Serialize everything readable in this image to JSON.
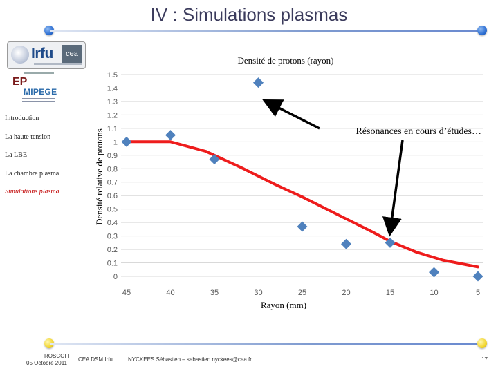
{
  "slide": {
    "title": "IV : Simulations plasmas",
    "page_number": "17"
  },
  "sidebar": {
    "items": [
      {
        "label": "Introduction",
        "active": false
      },
      {
        "label": "La haute tension",
        "active": false
      },
      {
        "label": "La LBE",
        "active": false
      },
      {
        "label": "La chambre plasma",
        "active": false
      },
      {
        "label": "Simulations plasma",
        "active": true
      }
    ]
  },
  "logos": {
    "irfu_text": "Irfu",
    "cea_text": "cea",
    "mipegge_ep": "EP",
    "mipegge_name": "MIPEGE"
  },
  "footer": {
    "place": "ROSCOFF",
    "date": "05 Octobre 2011",
    "org": "CEA DSM Irfu",
    "author": "NYCKEES Sébastien – sebastien.nyckees@cea.fr"
  },
  "colors": {
    "marker": "#4f81bd",
    "curve": "#ee1c1c",
    "grid": "#d9d9d9",
    "title": "#3b3b5c",
    "active_nav": "#c00000"
  },
  "chart_data": {
    "type": "scatter",
    "title": "Densité de protons (rayon)",
    "xlabel": "Rayon (mm)",
    "ylabel": "Densité relative de protons",
    "x_reversed": true,
    "xlim": [
      45,
      5
    ],
    "ylim": [
      0,
      1.5
    ],
    "x_ticks": [
      "45",
      "40",
      "35",
      "30",
      "25",
      "20",
      "15",
      "10",
      "5"
    ],
    "y_ticks": [
      "0",
      "0.1",
      "0.2",
      "0.3",
      "0.4",
      "0.5",
      "0.6",
      "0.7",
      "0.8",
      "0.9",
      "1",
      "1.1",
      "1.2",
      "1.3",
      "1.4",
      "1.5"
    ],
    "grid": "horizontal",
    "series": [
      {
        "kind": "points",
        "x": [
          45,
          40,
          35,
          30,
          25,
          20,
          15,
          10,
          5
        ],
        "y": [
          1.0,
          1.05,
          0.87,
          1.44,
          0.37,
          0.24,
          0.25,
          0.03,
          0.0
        ]
      },
      {
        "kind": "curve",
        "x": [
          45,
          40,
          36,
          32,
          28,
          25,
          21,
          17,
          15,
          12,
          9,
          5
        ],
        "y": [
          1.0,
          1.0,
          0.93,
          0.81,
          0.68,
          0.59,
          0.46,
          0.33,
          0.26,
          0.18,
          0.12,
          0.07
        ]
      }
    ],
    "annotation": {
      "text": "Résonances en cours d’études…",
      "targets": [
        [
          30,
          1.35
        ],
        [
          15,
          0.33
        ]
      ]
    }
  }
}
